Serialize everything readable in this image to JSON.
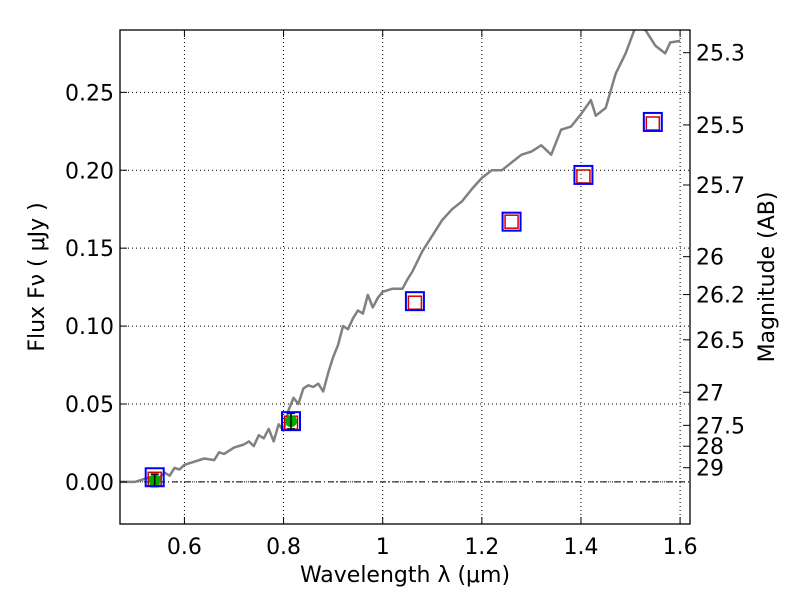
{
  "chart_data": {
    "type": "line",
    "xlabel": "Wavelength  λ (μm)",
    "ylabel_left": "Flux  Fν  ( μJy )",
    "ylabel_right": "Magnitude (AB)",
    "xlim": [
      0.47,
      1.62
    ],
    "ylim": [
      -0.027,
      0.29
    ],
    "xticks": [
      {
        "value": 0.6,
        "label": "0.6"
      },
      {
        "value": 0.8,
        "label": "0.8"
      },
      {
        "value": 1.0,
        "label": "1"
      },
      {
        "value": 1.2,
        "label": "1.2"
      },
      {
        "value": 1.4,
        "label": "1.4"
      },
      {
        "value": 1.6,
        "label": "1.6"
      }
    ],
    "yticks": [
      {
        "value": 0.0,
        "label": "0.00"
      },
      {
        "value": 0.05,
        "label": "0.05"
      },
      {
        "value": 0.1,
        "label": "0.10"
      },
      {
        "value": 0.15,
        "label": "0.15"
      },
      {
        "value": 0.2,
        "label": "0.20"
      },
      {
        "value": 0.25,
        "label": "0.25"
      }
    ],
    "mag_ticks": [
      {
        "mag": 25.3,
        "label": "25.3"
      },
      {
        "mag": 25.5,
        "label": "25.5"
      },
      {
        "mag": 25.7,
        "label": "25.7"
      },
      {
        "mag": 26,
        "label": "26"
      },
      {
        "mag": 26.2,
        "label": "26.2"
      },
      {
        "mag": 26.5,
        "label": "26.5"
      },
      {
        "mag": 27,
        "label": "27"
      },
      {
        "mag": 27.5,
        "label": "27.5"
      },
      {
        "mag": 28,
        "label": "28"
      },
      {
        "mag": 29,
        "label": "29"
      }
    ],
    "sed_model": {
      "name": "SED model",
      "color": "#808080",
      "x": [
        0.47,
        0.5,
        0.52,
        0.54,
        0.55,
        0.56,
        0.57,
        0.58,
        0.59,
        0.6,
        0.62,
        0.64,
        0.66,
        0.67,
        0.68,
        0.7,
        0.72,
        0.73,
        0.74,
        0.75,
        0.76,
        0.77,
        0.78,
        0.79,
        0.8,
        0.81,
        0.82,
        0.83,
        0.84,
        0.85,
        0.86,
        0.87,
        0.88,
        0.89,
        0.9,
        0.91,
        0.92,
        0.93,
        0.94,
        0.95,
        0.96,
        0.97,
        0.98,
        0.99,
        1.0,
        1.02,
        1.04,
        1.05,
        1.06,
        1.08,
        1.1,
        1.12,
        1.14,
        1.16,
        1.18,
        1.2,
        1.22,
        1.24,
        1.26,
        1.28,
        1.3,
        1.32,
        1.34,
        1.36,
        1.38,
        1.4,
        1.42,
        1.43,
        1.45,
        1.47,
        1.49,
        1.51,
        1.53,
        1.55,
        1.57,
        1.58,
        1.6
      ],
      "y": [
        0.0,
        0.0,
        0.002,
        0.004,
        0.003,
        0.006,
        0.004,
        0.009,
        0.008,
        0.011,
        0.013,
        0.015,
        0.014,
        0.019,
        0.018,
        0.022,
        0.024,
        0.026,
        0.023,
        0.03,
        0.028,
        0.034,
        0.026,
        0.037,
        0.033,
        0.046,
        0.054,
        0.05,
        0.06,
        0.062,
        0.061,
        0.063,
        0.058,
        0.07,
        0.08,
        0.088,
        0.1,
        0.098,
        0.105,
        0.11,
        0.108,
        0.12,
        0.112,
        0.118,
        0.122,
        0.124,
        0.124,
        0.13,
        0.135,
        0.148,
        0.158,
        0.168,
        0.175,
        0.18,
        0.188,
        0.195,
        0.2,
        0.2,
        0.205,
        0.21,
        0.212,
        0.216,
        0.21,
        0.226,
        0.228,
        0.236,
        0.245,
        0.235,
        0.24,
        0.262,
        0.275,
        0.292,
        0.29,
        0.28,
        0.275,
        0.282,
        0.283
      ]
    },
    "model_fluxes": {
      "name": "Model filter fluxes",
      "marker": "open square",
      "color": "#d40000",
      "x": [
        0.54,
        0.815,
        1.065,
        1.26,
        1.405,
        1.545
      ],
      "y": [
        0.002,
        0.038,
        0.115,
        0.167,
        0.196,
        0.23
      ]
    },
    "observed_fluxes": {
      "name": "Observed fluxes",
      "color": "#00aa00",
      "x": [
        0.54,
        0.815
      ],
      "y": [
        0.001,
        0.039
      ],
      "err": [
        0.004,
        0.005
      ]
    },
    "observed_bands": {
      "name": "Observation boxes",
      "marker": "open square",
      "color": "#0000ff",
      "x": [
        0.54,
        0.815,
        1.065,
        1.26,
        1.405,
        1.545
      ],
      "y": [
        0.003,
        0.039,
        0.116,
        0.167,
        0.197,
        0.231
      ]
    },
    "zero_line": 0.0,
    "grid": true
  }
}
